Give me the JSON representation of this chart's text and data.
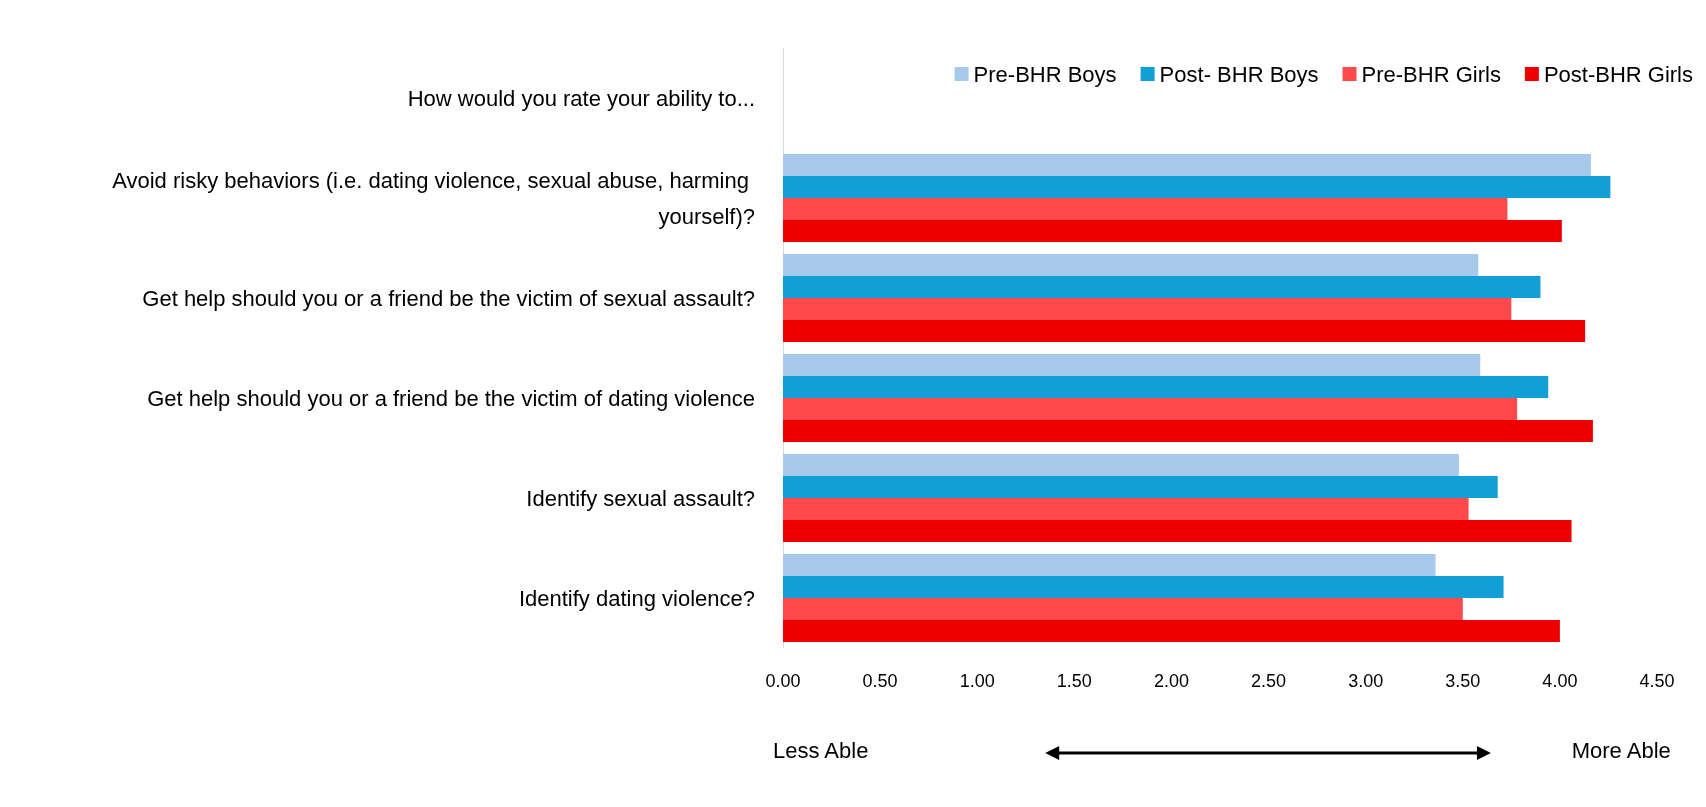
{
  "chart_data": {
    "type": "bar",
    "orientation": "horizontal",
    "categories": [
      "How would you rate your ability to...",
      "Avoid risky behaviors (i.e. dating violence, sexual abuse, harming yourself)?",
      "Get help should you or a friend be the victim of sexual assault?",
      "Get help should you or a friend be the victim of dating violence",
      "Identify sexual assault?",
      "Identify dating violence?"
    ],
    "series": [
      {
        "name": "Pre-BHR Boys",
        "color": "#a6c9ec",
        "values": [
          null,
          4.16,
          3.58,
          3.59,
          3.48,
          3.36
        ]
      },
      {
        "name": "Post- BHR Boys",
        "color": "#129fd6",
        "values": [
          null,
          4.26,
          3.9,
          3.94,
          3.68,
          3.71
        ]
      },
      {
        "name": "Pre-BHR Girls",
        "color": "#ff4a4d",
        "values": [
          null,
          3.73,
          3.75,
          3.78,
          3.53,
          3.5
        ]
      },
      {
        "name": "Post-BHR Girls",
        "color": "#ee0000",
        "values": [
          null,
          4.01,
          4.13,
          4.17,
          4.06,
          4.0
        ]
      }
    ],
    "xlim": [
      0,
      4.5
    ],
    "xticks": [
      {
        "value": 0,
        "label": "0.00"
      },
      {
        "value": 0.5,
        "label": "0.50"
      },
      {
        "value": 1,
        "label": "1.00"
      },
      {
        "value": 1.5,
        "label": "1.50"
      },
      {
        "value": 2,
        "label": "2.00"
      },
      {
        "value": 2.5,
        "label": "2.50"
      },
      {
        "value": 3,
        "label": "3.00"
      },
      {
        "value": 3.5,
        "label": "3.50"
      },
      {
        "value": 4,
        "label": "4.00"
      },
      {
        "value": 4.5,
        "label": "4.50"
      }
    ],
    "grid": false,
    "legend": "top right",
    "annotations": [
      "Less Able",
      "More Able"
    ]
  }
}
